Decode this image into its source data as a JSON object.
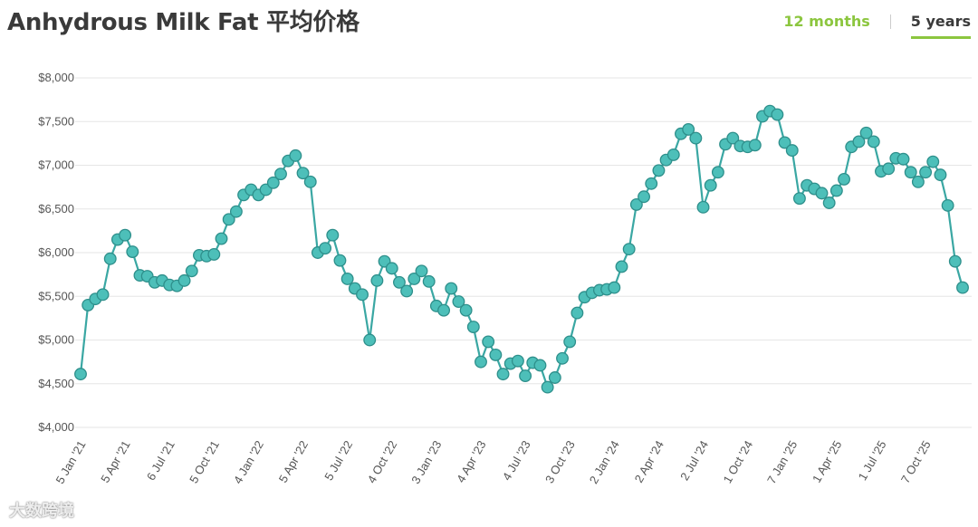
{
  "page": {
    "title": "Anhydrous Milk Fat 平均价格",
    "tabs": [
      {
        "label": "12 months",
        "active": false
      },
      {
        "label": "5 years",
        "active": true
      }
    ],
    "watermark": "大数跨境"
  },
  "colors": {
    "line": "#3aa7a3",
    "marker_fill": "#4dbfb9",
    "marker_stroke": "#2e8f8b",
    "grid": "#e6e6e6",
    "accent": "#8cc63f",
    "text": "#555555"
  },
  "chart_data": {
    "type": "line",
    "title": "Anhydrous Milk Fat 平均价格",
    "xlabel": "",
    "ylabel": "",
    "ylim": [
      4000,
      8000
    ],
    "yticks": [
      4000,
      4500,
      5000,
      5500,
      6000,
      6500,
      7000,
      7500,
      8000
    ],
    "ytick_labels": [
      "$4,000",
      "$4,500",
      "$5,000",
      "$5,500",
      "$6,000",
      "$6,500",
      "$7,000",
      "$7,500",
      "$8,000"
    ],
    "xtick_labels": [
      "5 Jan '21",
      "5 Apr '21",
      "6 Jul '21",
      "5 Oct '21",
      "4 Jan '22",
      "5 Apr '22",
      "5 Jul '22",
      "4 Oct '22",
      "3 Jan '23",
      "4 Apr '23",
      "4 Jul '23",
      "3 Oct '23",
      "2 Jan '24",
      "2 Apr '24",
      "2 Jul '24",
      "1 Oct '24",
      "7 Jan '25",
      "1 Apr '25",
      "1 Jul '25",
      "7 Oct '25"
    ],
    "xtick_index": [
      0,
      6,
      12,
      18,
      24,
      30,
      36,
      42,
      48,
      54,
      60,
      66,
      72,
      78,
      84,
      90,
      96,
      102,
      108,
      114
    ],
    "grid": true,
    "legend": "none",
    "series": [
      {
        "values": [
          4610,
          5400,
          5470,
          5520,
          5930,
          6150,
          6200,
          6010,
          5740,
          5730,
          5660,
          5680,
          5630,
          5620,
          5680,
          5790,
          5970,
          5960,
          5980,
          6160,
          6380,
          6470,
          6660,
          6720,
          6660,
          6720,
          6800,
          6900,
          7050,
          7110,
          6910,
          6810,
          6000,
          6050,
          6200,
          5910,
          5700,
          5590,
          5520,
          5000,
          5680,
          5900,
          5820,
          5660,
          5560,
          5700,
          5790,
          5670,
          5390,
          5340,
          5590,
          5440,
          5340,
          5150,
          4750,
          4980,
          4830,
          4610,
          4730,
          4760,
          4590,
          4740,
          4710,
          4460,
          4570,
          4790,
          4980,
          5310,
          5490,
          5540,
          5570,
          5580,
          5600,
          5840,
          6040,
          6550,
          6640,
          6790,
          6940,
          7060,
          7120,
          7360,
          7410,
          7310,
          6520,
          6770,
          6920,
          7240,
          7310,
          7220,
          7210,
          7230,
          7560,
          7620,
          7580,
          7260,
          7170,
          6620,
          6770,
          6730,
          6680,
          6570,
          6710,
          6840,
          7210,
          7270,
          7370,
          7270,
          6930,
          6960,
          7080,
          7070,
          6920,
          6810,
          6920,
          7040,
          6890,
          6540,
          5900,
          5600
        ]
      }
    ]
  }
}
